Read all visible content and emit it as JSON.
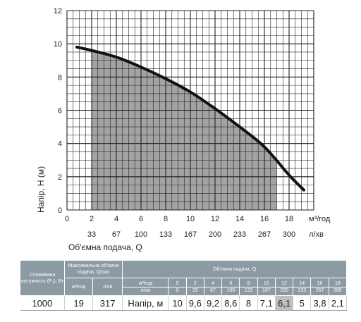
{
  "chart_data": {
    "type": "line",
    "title": "",
    "ylabel": "Напір, H (м)",
    "xlabel": "Об'ємна подача, Q",
    "x_unit_primary": "м³/год",
    "x_unit_secondary": "л/хв",
    "xlim": [
      0,
      20
    ],
    "ylim": [
      0,
      12
    ],
    "x_ticks": [
      0,
      2,
      4,
      6,
      8,
      10,
      12,
      14,
      16,
      18
    ],
    "x_ticks_secondary": [
      "33",
      "67",
      "100",
      "133",
      "167",
      "200",
      "233",
      "267",
      "300"
    ],
    "y_ticks": [
      0,
      2,
      4,
      6,
      8,
      10,
      12
    ],
    "grid": true,
    "shaded_range_x": [
      2,
      17
    ],
    "series": [
      {
        "color": "#111111",
        "x": [
          0.8,
          2,
          4,
          6,
          8,
          10,
          12,
          14,
          16,
          18,
          19.2
        ],
        "y": [
          9.8,
          9.6,
          9.2,
          8.6,
          7.9,
          7.1,
          6.1,
          5.0,
          3.8,
          2.1,
          1.2
        ]
      }
    ],
    "colors": {
      "shade": "#a3a3a3",
      "grid": "#222222",
      "line": "#111111"
    }
  },
  "table": {
    "headers": {
      "power": "Споживана потужність (P₁), Вт",
      "max_flow": "Максимальна об'ємна подача, Qmax",
      "flow_group": "Об'ємна подача, Q",
      "unit_m3h": "м³/год",
      "unit_lmin": "л/хв"
    },
    "q_m3h": [
      "0",
      "2",
      "4",
      "6",
      "8",
      "10",
      "12",
      "14",
      "16",
      "18"
    ],
    "q_lmin": [
      "0",
      "33",
      "67",
      "100",
      "133",
      "167",
      "200",
      "233",
      "267",
      "300"
    ],
    "row": {
      "power": "1000",
      "qmax_m3h": "19",
      "qmax_lmin": "317",
      "head_label": "Напір, м",
      "head_values": [
        "10",
        "9,6",
        "9,2",
        "8,6",
        "8",
        "7,1",
        "6,1",
        "5",
        "3,8",
        "2,1"
      ],
      "highlight_index": 6
    }
  }
}
